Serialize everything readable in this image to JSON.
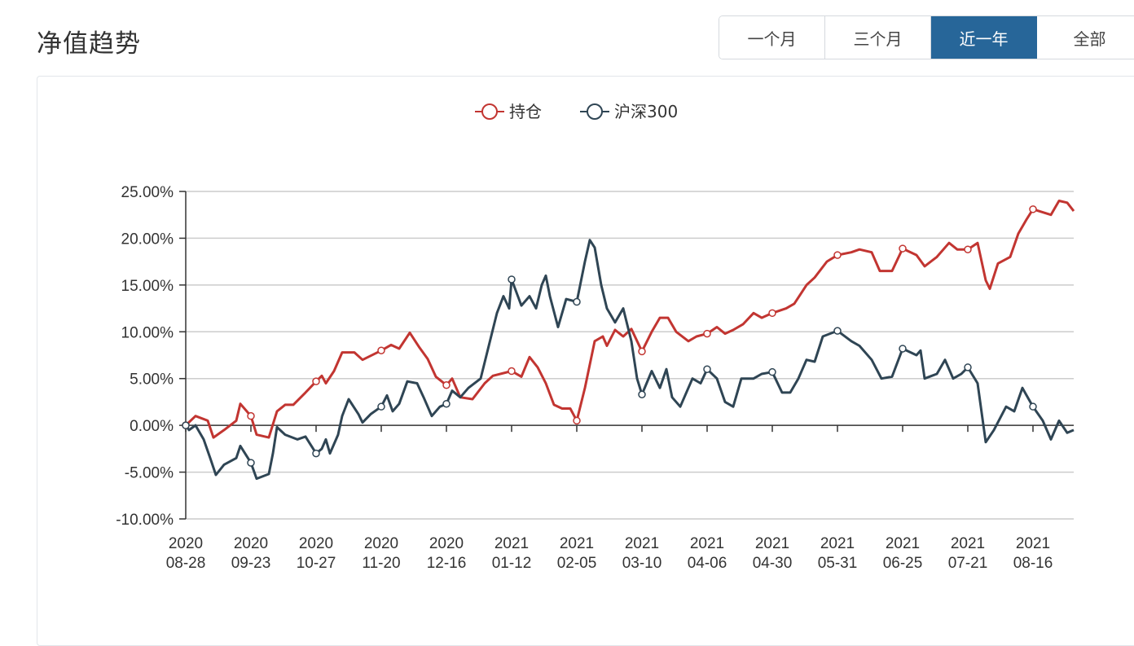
{
  "header": {
    "title": "净值趋势"
  },
  "range_buttons": [
    {
      "label": "一个月",
      "active": false
    },
    {
      "label": "三个月",
      "active": false
    },
    {
      "label": "近一年",
      "active": true
    },
    {
      "label": "全部",
      "active": false
    }
  ],
  "chart_data": {
    "type": "line",
    "title": "",
    "legend_position": "top-center",
    "grid": true,
    "xlabel": "",
    "ylabel": "",
    "ylim": [
      -10,
      25
    ],
    "yticks": [
      -10,
      -5,
      0,
      5,
      10,
      15,
      20,
      25
    ],
    "ytick_labels": [
      "-10.00%",
      "-5.00%",
      "0.00%",
      "5.00%",
      "10.00%",
      "15.00%",
      "20.00%",
      "25.00%"
    ],
    "x_unit": "trading-day index",
    "xlim": [
      0,
      218
    ],
    "xtick_indices": [
      0,
      16,
      32,
      48,
      64,
      80,
      96,
      112,
      128,
      144,
      160,
      176,
      192,
      208
    ],
    "xtick_labels": [
      [
        "2020",
        "08-28"
      ],
      [
        "2020",
        "09-23"
      ],
      [
        "2020",
        "10-27"
      ],
      [
        "2020",
        "11-20"
      ],
      [
        "2020",
        "12-16"
      ],
      [
        "2021",
        "01-12"
      ],
      [
        "2021",
        "02-05"
      ],
      [
        "2021",
        "03-10"
      ],
      [
        "2021",
        "04-06"
      ],
      [
        "2021",
        "04-30"
      ],
      [
        "2021",
        "05-31"
      ],
      [
        "2021",
        "06-25"
      ],
      [
        "2021",
        "07-21"
      ],
      [
        "2021",
        "08-16"
      ]
    ],
    "series": [
      {
        "name": "持仓",
        "color": "#c23531",
        "points": [
          [
            0,
            0
          ],
          [
            2.4,
            1.0
          ],
          [
            5.4,
            0.5
          ],
          [
            6.8,
            -1.3
          ],
          [
            9.4,
            -0.5
          ],
          [
            12.4,
            0.5
          ],
          [
            13.4,
            2.3
          ],
          [
            16,
            1.0
          ],
          [
            17.4,
            -1.0
          ],
          [
            20.4,
            -1.3
          ],
          [
            22.4,
            1.5
          ],
          [
            24.4,
            2.2
          ],
          [
            26.4,
            2.2
          ],
          [
            29.4,
            3.5
          ],
          [
            32,
            4.7
          ],
          [
            33.4,
            5.3
          ],
          [
            34.4,
            4.5
          ],
          [
            36.4,
            5.8
          ],
          [
            38.4,
            7.8
          ],
          [
            41.4,
            7.8
          ],
          [
            43.4,
            7.0
          ],
          [
            48,
            8.0
          ],
          [
            50.4,
            8.6
          ],
          [
            52.4,
            8.2
          ],
          [
            55,
            9.9
          ],
          [
            57.4,
            8.3
          ],
          [
            59.4,
            7.1
          ],
          [
            61.4,
            5.2
          ],
          [
            64,
            4.3
          ],
          [
            65.4,
            5.0
          ],
          [
            67.4,
            3.0
          ],
          [
            70.4,
            2.8
          ],
          [
            73.4,
            4.5
          ],
          [
            75.4,
            5.3
          ],
          [
            80,
            5.8
          ],
          [
            82.4,
            5.2
          ],
          [
            84.4,
            7.3
          ],
          [
            86.4,
            6.2
          ],
          [
            88.4,
            4.5
          ],
          [
            90.4,
            2.2
          ],
          [
            92.4,
            1.8
          ],
          [
            94.4,
            1.8
          ],
          [
            96,
            0.5
          ],
          [
            98,
            4.0
          ],
          [
            100.4,
            9.0
          ],
          [
            102.4,
            9.5
          ],
          [
            103.4,
            8.5
          ],
          [
            105.4,
            10.2
          ],
          [
            107.4,
            9.5
          ],
          [
            109.4,
            10.3
          ],
          [
            112,
            7.9
          ],
          [
            114.4,
            10.0
          ],
          [
            116.4,
            11.5
          ],
          [
            118.4,
            11.5
          ],
          [
            120.4,
            10.0
          ],
          [
            123.4,
            9.0
          ],
          [
            125.4,
            9.5
          ],
          [
            128,
            9.8
          ],
          [
            130.4,
            10.5
          ],
          [
            132.4,
            9.8
          ],
          [
            134.4,
            10.2
          ],
          [
            136.8,
            10.8
          ],
          [
            139.4,
            12.0
          ],
          [
            141.4,
            11.5
          ],
          [
            144,
            12.0
          ],
          [
            147.4,
            12.5
          ],
          [
            149.4,
            13.0
          ],
          [
            152.4,
            15.0
          ],
          [
            154.4,
            15.8
          ],
          [
            157.4,
            17.5
          ],
          [
            160,
            18.2
          ],
          [
            163.4,
            18.5
          ],
          [
            165.4,
            18.8
          ],
          [
            168.4,
            18.5
          ],
          [
            170.4,
            16.5
          ],
          [
            173.4,
            16.5
          ],
          [
            176,
            18.9
          ],
          [
            179.4,
            18.2
          ],
          [
            181.4,
            17.0
          ],
          [
            184.4,
            18.0
          ],
          [
            187.4,
            19.5
          ],
          [
            189.4,
            18.8
          ],
          [
            192,
            18.8
          ],
          [
            194.4,
            19.5
          ],
          [
            196.4,
            15.5
          ],
          [
            197.4,
            14.6
          ],
          [
            199.4,
            17.3
          ],
          [
            202.4,
            18.0
          ],
          [
            204.4,
            20.5
          ],
          [
            206.4,
            22.0
          ],
          [
            208,
            23.1
          ],
          [
            212.4,
            22.5
          ],
          [
            214.4,
            24.0
          ],
          [
            216.4,
            23.8
          ],
          [
            218,
            22.9
          ]
        ]
      },
      {
        "name": "沪深300",
        "color": "#2f4554",
        "points": [
          [
            0,
            0
          ],
          [
            0.8,
            -0.5
          ],
          [
            2.4,
            0
          ],
          [
            4.4,
            -1.5
          ],
          [
            6,
            -3.5
          ],
          [
            7.4,
            -5.3
          ],
          [
            9.4,
            -4.2
          ],
          [
            12.4,
            -3.5
          ],
          [
            13.4,
            -2.2
          ],
          [
            16,
            -4.0
          ],
          [
            17.4,
            -5.7
          ],
          [
            20.4,
            -5.2
          ],
          [
            21.4,
            -3.0
          ],
          [
            22.4,
            -0.2
          ],
          [
            24.4,
            -1.0
          ],
          [
            27.4,
            -1.5
          ],
          [
            29.4,
            -1.2
          ],
          [
            32,
            -3.0
          ],
          [
            33.4,
            -2.5
          ],
          [
            34.4,
            -1.5
          ],
          [
            35.4,
            -3.0
          ],
          [
            37.4,
            -1.0
          ],
          [
            38.4,
            1.0
          ],
          [
            40,
            2.8
          ],
          [
            42.4,
            1.2
          ],
          [
            43.4,
            0.3
          ],
          [
            45.4,
            1.2
          ],
          [
            48,
            2.0
          ],
          [
            49.4,
            3.2
          ],
          [
            50.8,
            1.5
          ],
          [
            52.4,
            2.3
          ],
          [
            54.4,
            4.7
          ],
          [
            56.8,
            4.5
          ],
          [
            58.4,
            3.0
          ],
          [
            60.4,
            1.0
          ],
          [
            62.4,
            2.0
          ],
          [
            64,
            2.3
          ],
          [
            65.4,
            3.7
          ],
          [
            67.4,
            3.0
          ],
          [
            69.4,
            4.0
          ],
          [
            72.4,
            5.0
          ],
          [
            74.4,
            8.5
          ],
          [
            76.4,
            12.0
          ],
          [
            78,
            13.8
          ],
          [
            79.4,
            12.5
          ],
          [
            80,
            15.6
          ],
          [
            82.4,
            12.8
          ],
          [
            84.4,
            13.8
          ],
          [
            86,
            12.5
          ],
          [
            87.4,
            15.0
          ],
          [
            88.4,
            16.0
          ],
          [
            89.4,
            13.8
          ],
          [
            91.4,
            10.5
          ],
          [
            93.4,
            13.5
          ],
          [
            96,
            13.2
          ],
          [
            98,
            17.5
          ],
          [
            99.2,
            19.8
          ],
          [
            100.4,
            19.0
          ],
          [
            102,
            15.0
          ],
          [
            103.4,
            12.5
          ],
          [
            105.4,
            11.0
          ],
          [
            107.4,
            12.5
          ],
          [
            109.4,
            9.0
          ],
          [
            110.8,
            5.0
          ],
          [
            112,
            3.3
          ],
          [
            114.4,
            5.8
          ],
          [
            116.4,
            4.0
          ],
          [
            118,
            6.0
          ],
          [
            119.4,
            3.0
          ],
          [
            121.4,
            2.0
          ],
          [
            124.4,
            5.0
          ],
          [
            126.4,
            4.5
          ],
          [
            128,
            6.0
          ],
          [
            130.4,
            5.0
          ],
          [
            132.4,
            2.5
          ],
          [
            134.4,
            2.0
          ],
          [
            136.4,
            5.0
          ],
          [
            139.4,
            5.0
          ],
          [
            141.4,
            5.5
          ],
          [
            144,
            5.7
          ],
          [
            146.4,
            3.5
          ],
          [
            148.4,
            3.5
          ],
          [
            150.4,
            5.0
          ],
          [
            152.4,
            7.0
          ],
          [
            154.4,
            6.8
          ],
          [
            156.4,
            9.5
          ],
          [
            160,
            10.1
          ],
          [
            163.4,
            9.0
          ],
          [
            165.4,
            8.5
          ],
          [
            168.4,
            7.0
          ],
          [
            170.8,
            5.0
          ],
          [
            173.4,
            5.2
          ],
          [
            176,
            8.2
          ],
          [
            179.4,
            7.5
          ],
          [
            180.4,
            8.0
          ],
          [
            181.4,
            5.0
          ],
          [
            184.4,
            5.5
          ],
          [
            186.4,
            7.0
          ],
          [
            188.4,
            5.0
          ],
          [
            190.4,
            5.5
          ],
          [
            192,
            6.2
          ],
          [
            194.4,
            4.5
          ],
          [
            196.4,
            -1.8
          ],
          [
            198.4,
            -0.5
          ],
          [
            201.4,
            2.0
          ],
          [
            203.4,
            1.5
          ],
          [
            205.4,
            4.0
          ],
          [
            208,
            2.0
          ],
          [
            210.4,
            0.5
          ],
          [
            212.4,
            -1.5
          ],
          [
            214.4,
            0.5
          ],
          [
            216.4,
            -0.8
          ],
          [
            218,
            -0.5
          ]
        ]
      }
    ]
  }
}
